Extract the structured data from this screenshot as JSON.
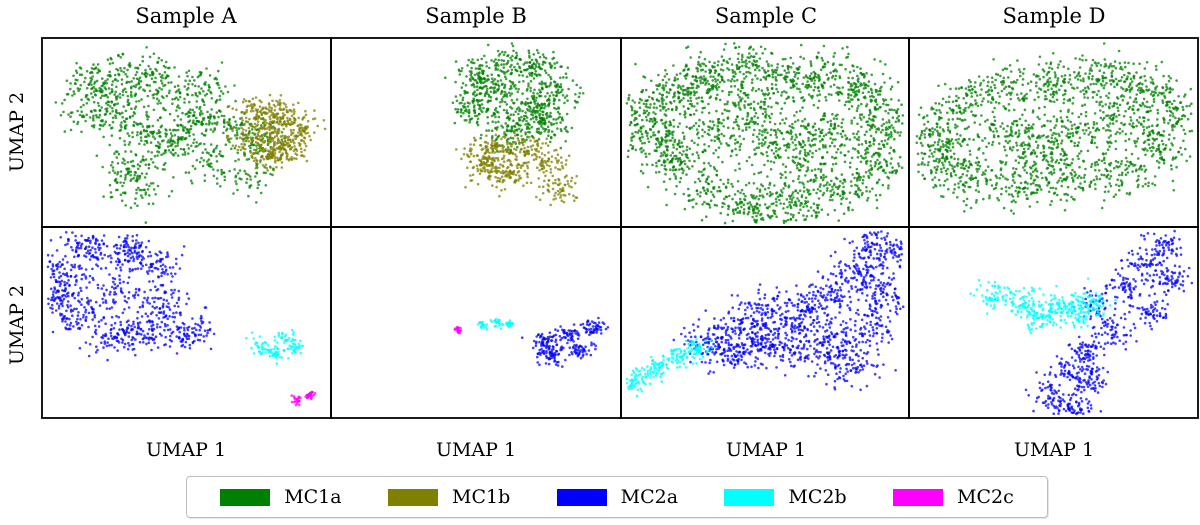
{
  "chart_data": {
    "type": "scatter",
    "description_free": true,
    "columns": [
      "Sample A",
      "Sample B",
      "Sample C",
      "Sample D"
    ],
    "rows": 2,
    "xlabel": "UMAP 1",
    "ylabel": "UMAP 2",
    "legend_placement": "bottom-center",
    "grid": false,
    "series": [
      {
        "name": "MC1a",
        "color": "#008000"
      },
      {
        "name": "MC1b",
        "color": "#808000"
      },
      {
        "name": "MC2a",
        "color": "#0000ff"
      },
      {
        "name": "MC2b",
        "color": "#00ffff"
      },
      {
        "name": "MC2c",
        "color": "#ff00ff"
      }
    ],
    "panels": [
      {
        "row": 0,
        "col": 0,
        "sample": "Sample A",
        "clusters": [
          {
            "series": "MC1a",
            "points": [
              [
                0.15,
                0.76
              ],
              [
                0.25,
                0.84
              ],
              [
                0.38,
                0.83
              ],
              [
                0.55,
                0.75
              ],
              [
                0.55,
                0.6
              ],
              [
                0.45,
                0.42
              ],
              [
                0.6,
                0.36
              ],
              [
                0.72,
                0.26
              ],
              [
                0.74,
                0.45
              ],
              [
                0.65,
                0.56
              ],
              [
                0.35,
                0.5
              ],
              [
                0.24,
                0.56
              ],
              [
                0.15,
                0.62
              ],
              [
                0.3,
                0.32
              ],
              [
                0.33,
                0.2
              ],
              [
                0.25,
                0.7
              ],
              [
                0.4,
                0.7
              ],
              [
                0.5,
                0.5
              ]
            ],
            "spread": 0.05,
            "n": 1100
          },
          {
            "series": "MC1b",
            "points": [
              [
                0.74,
                0.6
              ],
              [
                0.82,
                0.6
              ],
              [
                0.89,
                0.52
              ],
              [
                0.86,
                0.42
              ],
              [
                0.78,
                0.38
              ],
              [
                0.72,
                0.48
              ],
              [
                0.8,
                0.5
              ]
            ],
            "spread": 0.035,
            "n": 550
          }
        ]
      },
      {
        "row": 0,
        "col": 1,
        "sample": "Sample B",
        "clusters": [
          {
            "series": "MC1a",
            "points": [
              [
                0.5,
                0.8
              ],
              [
                0.6,
                0.86
              ],
              [
                0.72,
                0.84
              ],
              [
                0.76,
                0.7
              ],
              [
                0.74,
                0.55
              ],
              [
                0.62,
                0.5
              ],
              [
                0.5,
                0.62
              ],
              [
                0.55,
                0.72
              ],
              [
                0.68,
                0.62
              ]
            ],
            "spread": 0.045,
            "n": 800
          },
          {
            "series": "MC1b",
            "points": [
              [
                0.52,
                0.37
              ],
              [
                0.58,
                0.42
              ],
              [
                0.68,
                0.42
              ],
              [
                0.74,
                0.34
              ],
              [
                0.62,
                0.28
              ],
              [
                0.55,
                0.3
              ],
              [
                0.78,
                0.2
              ]
            ],
            "spread": 0.035,
            "n": 450
          }
        ]
      },
      {
        "row": 0,
        "col": 2,
        "sample": "Sample C",
        "clusters": [
          {
            "series": "MC1a",
            "points": [
              [
                0.1,
                0.6
              ],
              [
                0.2,
                0.72
              ],
              [
                0.3,
                0.8
              ],
              [
                0.45,
                0.86
              ],
              [
                0.6,
                0.78
              ],
              [
                0.72,
                0.8
              ],
              [
                0.85,
                0.72
              ],
              [
                0.92,
                0.55
              ],
              [
                0.88,
                0.35
              ],
              [
                0.78,
                0.2
              ],
              [
                0.6,
                0.12
              ],
              [
                0.45,
                0.1
              ],
              [
                0.3,
                0.2
              ],
              [
                0.2,
                0.35
              ],
              [
                0.12,
                0.45
              ],
              [
                0.35,
                0.5
              ],
              [
                0.55,
                0.45
              ],
              [
                0.7,
                0.5
              ],
              [
                0.45,
                0.65
              ],
              [
                0.65,
                0.3
              ]
            ],
            "spread": 0.06,
            "n": 2200
          }
        ]
      },
      {
        "row": 0,
        "col": 3,
        "sample": "Sample D",
        "clusters": [
          {
            "series": "MC1a",
            "points": [
              [
                0.12,
                0.5
              ],
              [
                0.2,
                0.66
              ],
              [
                0.35,
                0.74
              ],
              [
                0.5,
                0.76
              ],
              [
                0.66,
                0.8
              ],
              [
                0.82,
                0.74
              ],
              [
                0.9,
                0.6
              ],
              [
                0.86,
                0.42
              ],
              [
                0.72,
                0.3
              ],
              [
                0.55,
                0.26
              ],
              [
                0.38,
                0.24
              ],
              [
                0.2,
                0.26
              ],
              [
                0.12,
                0.36
              ],
              [
                0.35,
                0.5
              ],
              [
                0.55,
                0.52
              ],
              [
                0.72,
                0.55
              ],
              [
                0.45,
                0.38
              ]
            ],
            "spread": 0.06,
            "n": 1700
          }
        ]
      },
      {
        "row": 1,
        "col": 0,
        "sample": "Sample A",
        "clusters": [
          {
            "series": "MC2a",
            "points": [
              [
                0.08,
                0.76
              ],
              [
                0.15,
                0.9
              ],
              [
                0.28,
                0.88
              ],
              [
                0.38,
                0.8
              ],
              [
                0.42,
                0.6
              ],
              [
                0.35,
                0.45
              ],
              [
                0.25,
                0.42
              ],
              [
                0.12,
                0.52
              ],
              [
                0.06,
                0.62
              ],
              [
                0.25,
                0.65
              ],
              [
                0.5,
                0.44
              ]
            ],
            "spread": 0.045,
            "n": 900
          },
          {
            "series": "MC2b",
            "points": [
              [
                0.75,
                0.38
              ],
              [
                0.8,
                0.33
              ],
              [
                0.87,
                0.37
              ],
              [
                0.84,
                0.42
              ]
            ],
            "spread": 0.018,
            "n": 120
          },
          {
            "series": "MC2c",
            "points": [
              [
                0.88,
                0.09
              ],
              [
                0.93,
                0.12
              ]
            ],
            "spread": 0.01,
            "n": 50
          }
        ]
      },
      {
        "row": 1,
        "col": 1,
        "sample": "Sample B",
        "clusters": [
          {
            "series": "MC2a",
            "points": [
              [
                0.74,
                0.4
              ],
              [
                0.82,
                0.44
              ],
              [
                0.9,
                0.47
              ],
              [
                0.86,
                0.36
              ],
              [
                0.76,
                0.33
              ]
            ],
            "spread": 0.022,
            "n": 260
          },
          {
            "series": "MC2b",
            "points": [
              [
                0.52,
                0.49
              ],
              [
                0.57,
                0.5
              ],
              [
                0.61,
                0.49
              ]
            ],
            "spread": 0.01,
            "n": 60
          },
          {
            "series": "MC2c",
            "points": [
              [
                0.44,
                0.46
              ]
            ],
            "spread": 0.008,
            "n": 20
          }
        ]
      },
      {
        "row": 1,
        "col": 2,
        "sample": "Sample C",
        "clusters": [
          {
            "series": "MC2a",
            "points": [
              [
                0.3,
                0.4
              ],
              [
                0.42,
                0.48
              ],
              [
                0.5,
                0.58
              ],
              [
                0.62,
                0.52
              ],
              [
                0.7,
                0.62
              ],
              [
                0.8,
                0.74
              ],
              [
                0.88,
                0.82
              ],
              [
                0.9,
                0.62
              ],
              [
                0.85,
                0.45
              ],
              [
                0.72,
                0.38
              ],
              [
                0.6,
                0.35
              ],
              [
                0.5,
                0.4
              ],
              [
                0.4,
                0.35
              ],
              [
                0.78,
                0.28
              ],
              [
                0.9,
                0.9
              ]
            ],
            "spread": 0.05,
            "n": 1300
          },
          {
            "series": "MC2b",
            "points": [
              [
                0.05,
                0.2
              ],
              [
                0.12,
                0.26
              ],
              [
                0.2,
                0.32
              ],
              [
                0.26,
                0.36
              ]
            ],
            "spread": 0.025,
            "n": 220
          }
        ]
      },
      {
        "row": 1,
        "col": 3,
        "sample": "Sample D",
        "clusters": [
          {
            "series": "MC2a",
            "points": [
              [
                0.65,
                0.6
              ],
              [
                0.75,
                0.68
              ],
              [
                0.8,
                0.8
              ],
              [
                0.88,
                0.9
              ],
              [
                0.9,
                0.72
              ],
              [
                0.85,
                0.55
              ],
              [
                0.7,
                0.45
              ],
              [
                0.62,
                0.35
              ],
              [
                0.55,
                0.25
              ],
              [
                0.48,
                0.12
              ],
              [
                0.58,
                0.05
              ],
              [
                0.62,
                0.2
              ]
            ],
            "spread": 0.035,
            "n": 700
          },
          {
            "series": "MC2b",
            "points": [
              [
                0.3,
                0.64
              ],
              [
                0.4,
                0.62
              ],
              [
                0.5,
                0.58
              ],
              [
                0.58,
                0.56
              ],
              [
                0.45,
                0.52
              ],
              [
                0.62,
                0.6
              ]
            ],
            "spread": 0.035,
            "n": 380
          }
        ]
      }
    ]
  }
}
